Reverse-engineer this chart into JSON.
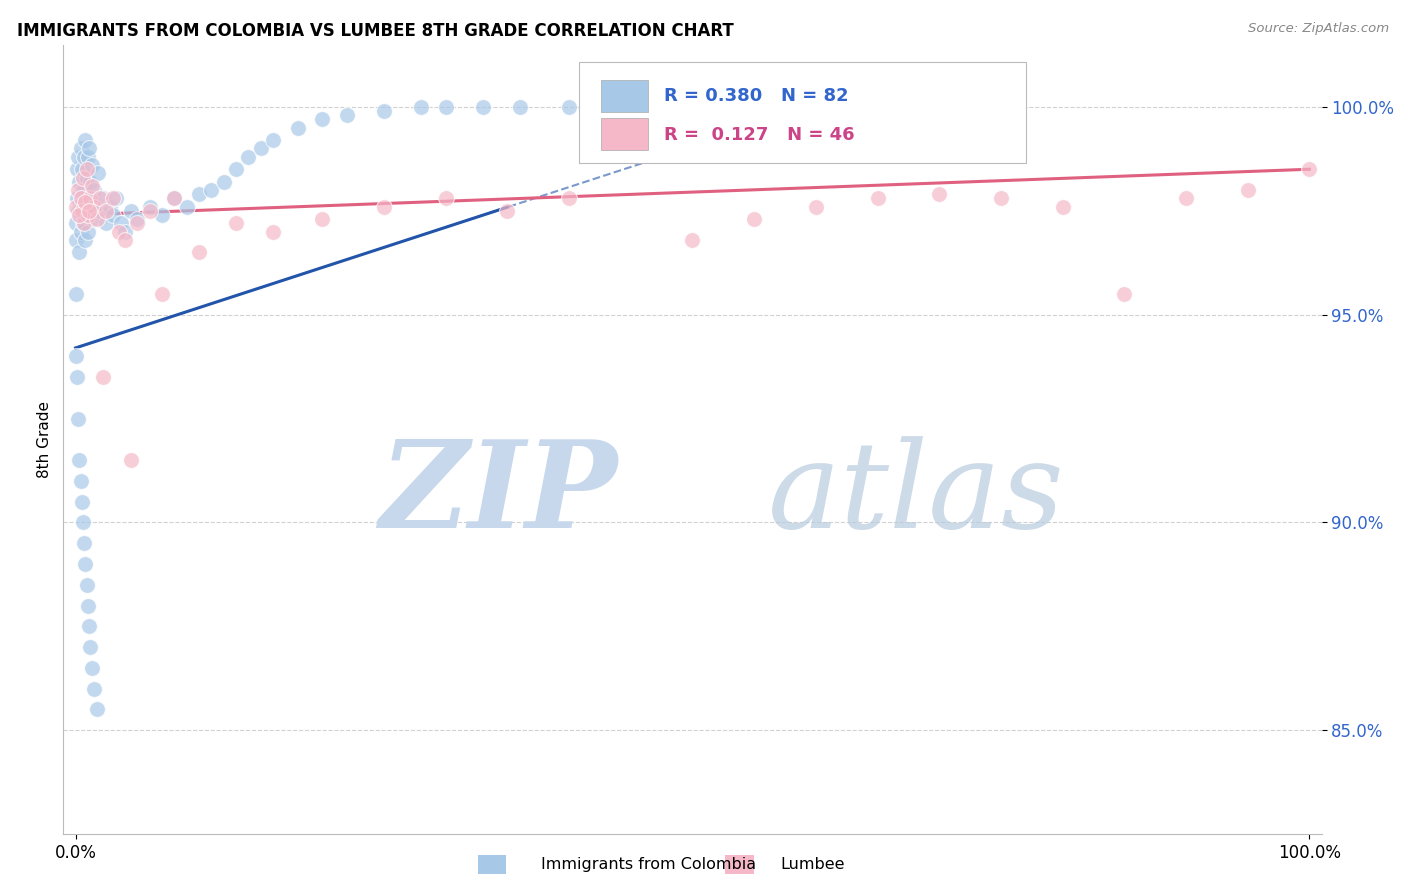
{
  "title": "IMMIGRANTS FROM COLOMBIA VS LUMBEE 8TH GRADE CORRELATION CHART",
  "source": "Source: ZipAtlas.com",
  "ylabel": "8th Grade",
  "legend_label1": "Immigrants from Colombia",
  "legend_label2": "Lumbee",
  "r1": 0.38,
  "n1": 82,
  "r2": 0.127,
  "n2": 46,
  "color_blue": "#a8c8e8",
  "color_pink": "#f5b8c8",
  "color_line_blue": "#2255aa",
  "color_line_pink": "#e06080",
  "color_label_blue": "#3366cc",
  "color_label_pink": "#cc4488",
  "watermark_zip_color": "#c8d8ec",
  "watermark_atlas_color": "#b8cce0",
  "background_color": "#ffffff",
  "grid_color": "#cccccc",
  "ytick_color": "#3366cc",
  "yticks": [
    85.0,
    90.0,
    95.0,
    100.0
  ],
  "ylim": [
    82.5,
    101.5
  ],
  "xlim": [
    -0.01,
    1.01
  ],
  "blue_line_x0": 0.0,
  "blue_line_y0": 94.2,
  "blue_line_x1": 0.62,
  "blue_line_y1": 100.2,
  "pink_line_x0": 0.0,
  "pink_line_y0": 97.4,
  "pink_line_x1": 1.0,
  "pink_line_y1": 98.5,
  "blue_scatter_x": [
    0.0,
    0.0,
    0.0,
    0.001,
    0.001,
    0.002,
    0.002,
    0.003,
    0.003,
    0.004,
    0.004,
    0.005,
    0.005,
    0.006,
    0.006,
    0.007,
    0.007,
    0.008,
    0.008,
    0.009,
    0.009,
    0.01,
    0.01,
    0.011,
    0.011,
    0.012,
    0.013,
    0.013,
    0.014,
    0.015,
    0.016,
    0.018,
    0.02,
    0.022,
    0.025,
    0.028,
    0.03,
    0.033,
    0.037,
    0.04,
    0.045,
    0.05,
    0.06,
    0.07,
    0.08,
    0.09,
    0.1,
    0.11,
    0.12,
    0.13,
    0.14,
    0.15,
    0.16,
    0.18,
    0.2,
    0.22,
    0.25,
    0.28,
    0.3,
    0.33,
    0.36,
    0.4,
    0.45,
    0.5,
    0.55,
    0.6,
    0.0,
    0.001,
    0.002,
    0.003,
    0.004,
    0.005,
    0.006,
    0.007,
    0.008,
    0.009,
    0.01,
    0.011,
    0.012,
    0.013,
    0.015,
    0.017
  ],
  "blue_scatter_y": [
    96.8,
    97.2,
    95.5,
    97.8,
    98.5,
    97.5,
    98.8,
    96.5,
    98.2,
    97.0,
    99.0,
    97.8,
    98.5,
    97.2,
    98.0,
    97.5,
    98.8,
    96.8,
    99.2,
    97.6,
    98.3,
    97.0,
    98.8,
    97.5,
    99.0,
    98.2,
    97.8,
    98.6,
    97.3,
    98.0,
    97.6,
    98.4,
    97.5,
    97.8,
    97.2,
    97.6,
    97.4,
    97.8,
    97.2,
    97.0,
    97.5,
    97.3,
    97.6,
    97.4,
    97.8,
    97.6,
    97.9,
    98.0,
    98.2,
    98.5,
    98.8,
    99.0,
    99.2,
    99.5,
    99.7,
    99.8,
    99.9,
    100.0,
    100.0,
    100.0,
    100.0,
    100.0,
    100.0,
    100.0,
    100.0,
    100.0,
    94.0,
    93.5,
    92.5,
    91.5,
    91.0,
    90.5,
    90.0,
    89.5,
    89.0,
    88.5,
    88.0,
    87.5,
    87.0,
    86.5,
    86.0,
    85.5
  ],
  "pink_scatter_x": [
    0.0,
    0.002,
    0.004,
    0.005,
    0.006,
    0.007,
    0.009,
    0.01,
    0.012,
    0.013,
    0.015,
    0.017,
    0.02,
    0.025,
    0.03,
    0.035,
    0.04,
    0.05,
    0.06,
    0.08,
    0.1,
    0.13,
    0.16,
    0.2,
    0.25,
    0.3,
    0.35,
    0.4,
    0.5,
    0.55,
    0.6,
    0.65,
    0.7,
    0.75,
    0.8,
    0.85,
    0.9,
    0.95,
    1.0,
    0.003,
    0.008,
    0.011,
    0.022,
    0.045,
    0.07,
    0.55
  ],
  "pink_scatter_y": [
    97.6,
    98.0,
    97.8,
    97.5,
    98.3,
    97.2,
    98.5,
    97.4,
    97.8,
    98.1,
    97.6,
    97.3,
    97.8,
    97.5,
    97.8,
    97.0,
    96.8,
    97.2,
    97.5,
    97.8,
    96.5,
    97.2,
    97.0,
    97.3,
    97.6,
    97.8,
    97.5,
    97.8,
    96.8,
    97.3,
    97.6,
    97.8,
    97.9,
    97.8,
    97.6,
    95.5,
    97.8,
    98.0,
    98.5,
    97.4,
    97.7,
    97.5,
    93.5,
    91.5,
    95.5,
    100.2
  ]
}
